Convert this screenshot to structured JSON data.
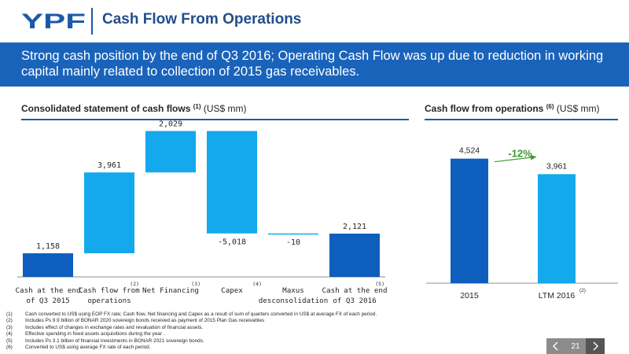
{
  "header": {
    "logo_text": "YPF",
    "title": "Cash Flow From Operations"
  },
  "banner": {
    "text": "Strong cash position by the end of Q3 2016; Operating Cash Flow was up due to reduction in working capital mainly related to collection of 2015 gas receivables."
  },
  "left_section": {
    "title_bold": "Consolidated statement of cash flows",
    "title_note": "(1)",
    "title_unit": "(US$ mm)"
  },
  "right_section": {
    "title_bold": "Cash flow from operations",
    "title_note": "(6)",
    "title_unit": "(US$ mm)"
  },
  "chart_data": [
    {
      "type": "bar",
      "subtype": "waterfall",
      "categories": [
        [
          "Cash at the end",
          "of Q3 2015"
        ],
        [
          "Cash flow from",
          "operations"
        ],
        [
          "Net Financing"
        ],
        [
          "Capex"
        ],
        [
          "Maxus",
          "desconsolidation"
        ],
        [
          "Cash at the end",
          "of Q3 2016"
        ]
      ],
      "category_notes": [
        "",
        "(2)",
        "(3)",
        "(4)",
        "",
        "(5)"
      ],
      "values": [
        1158,
        3961,
        2029,
        -5018,
        -10,
        2121
      ],
      "data_labels": [
        "1,158",
        "3,961",
        "2,029",
        "-5,018",
        "-10",
        "2,121"
      ],
      "bar_kinds": [
        "total",
        "delta",
        "delta",
        "delta",
        "delta",
        "total"
      ],
      "ylim": [
        0,
        7400
      ],
      "grid": false,
      "legend": "none",
      "colors": {
        "total": "#0e5fbd",
        "delta": "#14a8ec"
      }
    },
    {
      "type": "bar",
      "categories": [
        "2015",
        "LTM 2016"
      ],
      "category_notes": [
        "",
        "(2)"
      ],
      "values": [
        4524,
        3961
      ],
      "data_labels": [
        "4,524",
        "3,961"
      ],
      "ylim": [
        0,
        5600
      ],
      "grid": false,
      "legend": "none",
      "annotation": {
        "text": "-12%",
        "color": "#3a9b2c"
      },
      "colors": {
        "first": "#0e5fbd",
        "second": "#14a8ec"
      }
    }
  ],
  "footnotes": [
    {
      "no": "(1)",
      "text": "Cash converted to US$ using EOP FX rate; Cash flow, Net financing and Capex as a result of sum of quarters converted in US$ at average FX of each period."
    },
    {
      "no": "(2)",
      "text": "Includes Ps 9.9 billion of BONAR 2020 sovereign bonds received as payment of 2015 Plan Gas receivables"
    },
    {
      "no": "(3)",
      "text": "Includes effect of changes in exchange rates and revaluation of financial assets."
    },
    {
      "no": "(4)",
      "text": "Effective spending in fixed assets acquisitions during the year ."
    },
    {
      "no": "(5)",
      "text": "Includes Ps 3.1 billion of financial investments in BONAR 2021 sovereign bonds."
    },
    {
      "no": "(6)",
      "text": "Converted to US$ using average FX rate of each period."
    }
  ],
  "pager": {
    "page_number": "21",
    "prev_icon": "chevron-left-icon",
    "next_icon": "chevron-right-icon"
  },
  "colors": {
    "brand_blue": "#1a63ba",
    "title_blue": "#234d8c",
    "pager_gray": "#8c8c8c"
  }
}
